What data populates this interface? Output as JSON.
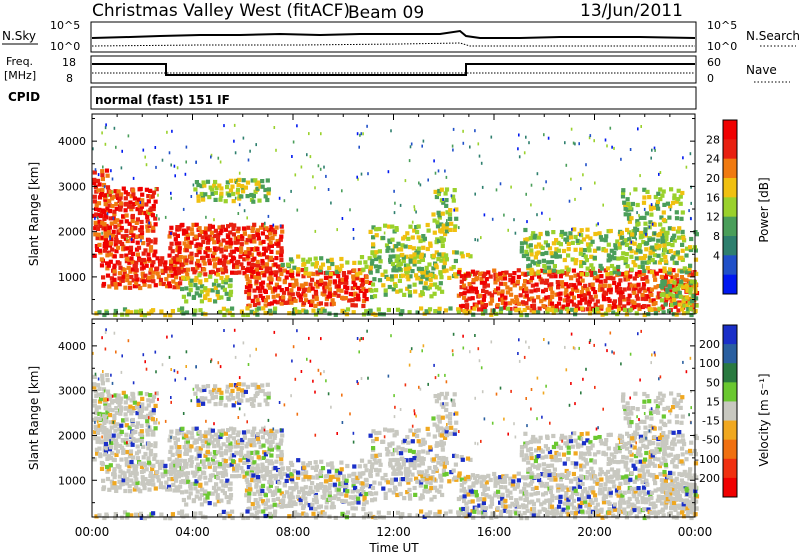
{
  "header": {
    "station": "Christmas Valley West (fitACF)",
    "beam": "Beam 09",
    "date": "13/Jun/2011"
  },
  "nsky_panel": {
    "left_label": "N.Sky",
    "right_label": "N.Search",
    "left_ticks": [
      "10^5",
      "10^0"
    ],
    "right_ticks": [
      "10^5",
      "10^0"
    ]
  },
  "freq_panel": {
    "left_label_1": "Freq.",
    "left_label_2": "[MHz]",
    "right_label": "Nave",
    "left_ticks": [
      "18",
      "8"
    ],
    "right_ticks": [
      "60",
      "0"
    ]
  },
  "cpid_panel": {
    "label": "CPID",
    "text": "normal (fast) 151 IF"
  },
  "chart_data": [
    {
      "type": "heatmap",
      "panel": "power",
      "ylabel": "Slant Range [km]",
      "yticks": [
        1000,
        2000,
        3000,
        4000
      ],
      "ylim": [
        180,
        4600
      ],
      "xticks": [
        "00:00",
        "04:00",
        "08:00",
        "12:00",
        "16:00",
        "20:00",
        "00:00"
      ],
      "colorbar": {
        "label": "Power [dB]",
        "ticks": [
          "4",
          "8",
          "12",
          "16",
          "20",
          "24",
          "28"
        ],
        "colors": [
          "#0018f0",
          "#2050c8",
          "#2e7f6e",
          "#4a9e5a",
          "#9ad12c",
          "#f0c010",
          "#f07a10",
          "#e82010",
          "#f00000"
        ]
      }
    },
    {
      "type": "heatmap",
      "panel": "velocity",
      "ylabel": "Slant Range [km]",
      "yticks": [
        1000,
        2000,
        3000,
        4000
      ],
      "ylim": [
        180,
        4600
      ],
      "xticks": [
        "00:00",
        "04:00",
        "08:00",
        "12:00",
        "16:00",
        "20:00",
        "00:00"
      ],
      "xlabel": "Time UT",
      "colorbar": {
        "label": "Velocity [m s⁻¹]",
        "ticks": [
          "200",
          "100",
          "50",
          "15",
          "-15",
          "-50",
          "-100",
          "-200"
        ],
        "colors": [
          "#1a2fc8",
          "#2a5fa0",
          "#2a7a40",
          "#6ac830",
          "#c8c8c0",
          "#f0a820",
          "#f07010",
          "#f03010",
          "#f00000"
        ]
      }
    }
  ]
}
